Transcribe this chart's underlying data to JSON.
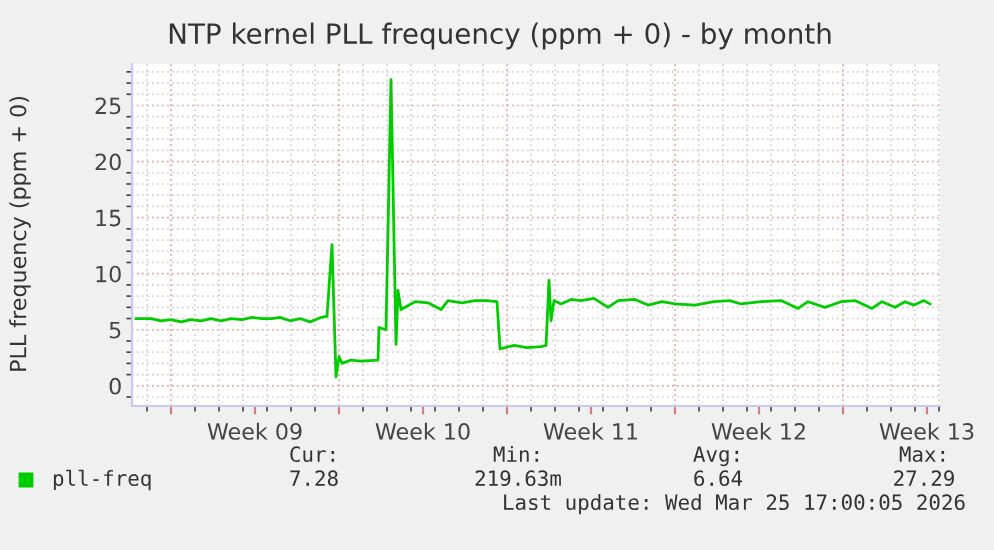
{
  "chart_data": {
    "type": "line",
    "title": "NTP kernel PLL frequency (ppm + 0) - by month",
    "ylabel": "PLL frequency (ppm + 0)",
    "x": [
      "2026-02-21T13:00",
      "2026-02-22T04:00",
      "2026-02-22T14:00",
      "2026-02-23T00:00",
      "2026-02-23T10:00",
      "2026-02-23T20:00",
      "2026-02-24T06:00",
      "2026-02-24T16:00",
      "2026-02-25T02:00",
      "2026-02-25T12:00",
      "2026-02-25T23:00",
      "2026-02-26T09:00",
      "2026-02-26T19:00",
      "2026-02-27T05:00",
      "2026-02-27T13:00",
      "2026-02-27T23:00",
      "2026-02-28T09:00",
      "2026-02-28T19:00",
      "2026-03-01T06:00",
      "2026-03-01T12:00",
      "2026-03-01T17:00",
      "2026-03-01T21:00",
      "2026-03-02T00:00",
      "2026-03-02T03:00",
      "2026-03-02T12:00",
      "2026-03-02T22:00",
      "2026-03-03T15:00",
      "2026-03-03T16:00",
      "2026-03-03T23:00",
      "2026-03-04T04:00",
      "2026-03-04T09:00",
      "2026-03-04T11:00",
      "2026-03-04T14:00",
      "2026-03-05T04:00",
      "2026-03-05T17:00",
      "2026-03-06T06:00",
      "2026-03-06T13:00",
      "2026-03-07T03:00",
      "2026-03-07T16:00",
      "2026-03-08T04:00",
      "2026-03-08T14:00",
      "2026-03-08T17:00",
      "2026-03-09T07:00",
      "2026-03-09T20:00",
      "2026-03-10T10:00",
      "2026-03-10T15:00",
      "2026-03-10T18:00",
      "2026-03-10T20:00",
      "2026-03-10T23:00",
      "2026-03-11T06:00",
      "2026-03-11T16:00",
      "2026-03-12T02:00",
      "2026-03-12T15:00",
      "2026-03-13T05:00",
      "2026-03-13T15:00",
      "2026-03-14T08:00",
      "2026-03-14T21:00",
      "2026-03-15T11:00",
      "2026-03-16T00:00",
      "2026-03-16T20:00",
      "2026-03-17T15:00",
      "2026-03-18T07:00",
      "2026-03-18T18:00",
      "2026-03-19T14:00",
      "2026-03-20T10:00",
      "2026-03-21T03:00",
      "2026-03-21T13:00",
      "2026-03-22T06:00",
      "2026-03-22T22:00",
      "2026-03-23T12:00",
      "2026-03-24T05:00",
      "2026-03-24T15:00",
      "2026-03-25T04:00",
      "2026-03-25T14:00",
      "2026-03-25T23:00",
      "2026-03-26T09:00",
      "2026-03-26T15:00"
    ],
    "series": [
      {
        "name": "pll-freq",
        "color": "#00cc00",
        "values": [
          6.0,
          6.0,
          5.8,
          5.9,
          5.7,
          5.9,
          5.8,
          6.0,
          5.8,
          6.0,
          5.9,
          6.1,
          6.0,
          6.0,
          6.1,
          5.8,
          6.0,
          5.7,
          6.1,
          6.2,
          12.6,
          0.8,
          2.6,
          2.0,
          2.3,
          2.2,
          2.3,
          5.2,
          5.0,
          27.3,
          3.7,
          8.5,
          6.8,
          7.5,
          7.4,
          6.8,
          7.6,
          7.4,
          7.6,
          7.6,
          7.5,
          3.3,
          3.6,
          3.4,
          3.5,
          3.6,
          9.4,
          5.8,
          7.6,
          7.3,
          7.7,
          7.6,
          7.8,
          7.0,
          7.6,
          7.7,
          7.2,
          7.5,
          7.3,
          7.2,
          7.5,
          7.6,
          7.3,
          7.5,
          7.6,
          6.9,
          7.5,
          7.0,
          7.5,
          7.6,
          6.9,
          7.5,
          7.0,
          7.5,
          7.2,
          7.6,
          7.3
        ]
      }
    ],
    "xlim": [
      "2026-02-21T09:00",
      "2026-03-27T01:00"
    ],
    "ylim": [
      -1.8,
      28.7
    ],
    "xticks": [
      {
        "value": "2026-02-23",
        "label": null
      },
      {
        "value": "2026-02-26T12:00",
        "label": "Week 09"
      },
      {
        "value": "2026-03-02",
        "label": null
      },
      {
        "value": "2026-03-05T12:00",
        "label": "Week 10"
      },
      {
        "value": "2026-03-09",
        "label": null
      },
      {
        "value": "2026-03-12T12:00",
        "label": "Week 11"
      },
      {
        "value": "2026-03-16",
        "label": null
      },
      {
        "value": "2026-03-19T12:00",
        "label": "Week 12"
      },
      {
        "value": "2026-03-23",
        "label": null
      },
      {
        "value": "2026-03-26T12:00",
        "label": "Week 13"
      }
    ],
    "yticks": [
      0,
      5,
      10,
      15,
      20,
      25
    ],
    "grid": true,
    "legend": "bottom",
    "marker": "none",
    "line_style": "solid",
    "annotations": [
      "Cur:",
      "Min:",
      "Avg:",
      "Max:",
      "7.28",
      "219.63m",
      "6.64",
      "27.29",
      "Last update: Wed Mar 25 17:00:05 2026"
    ]
  }
}
